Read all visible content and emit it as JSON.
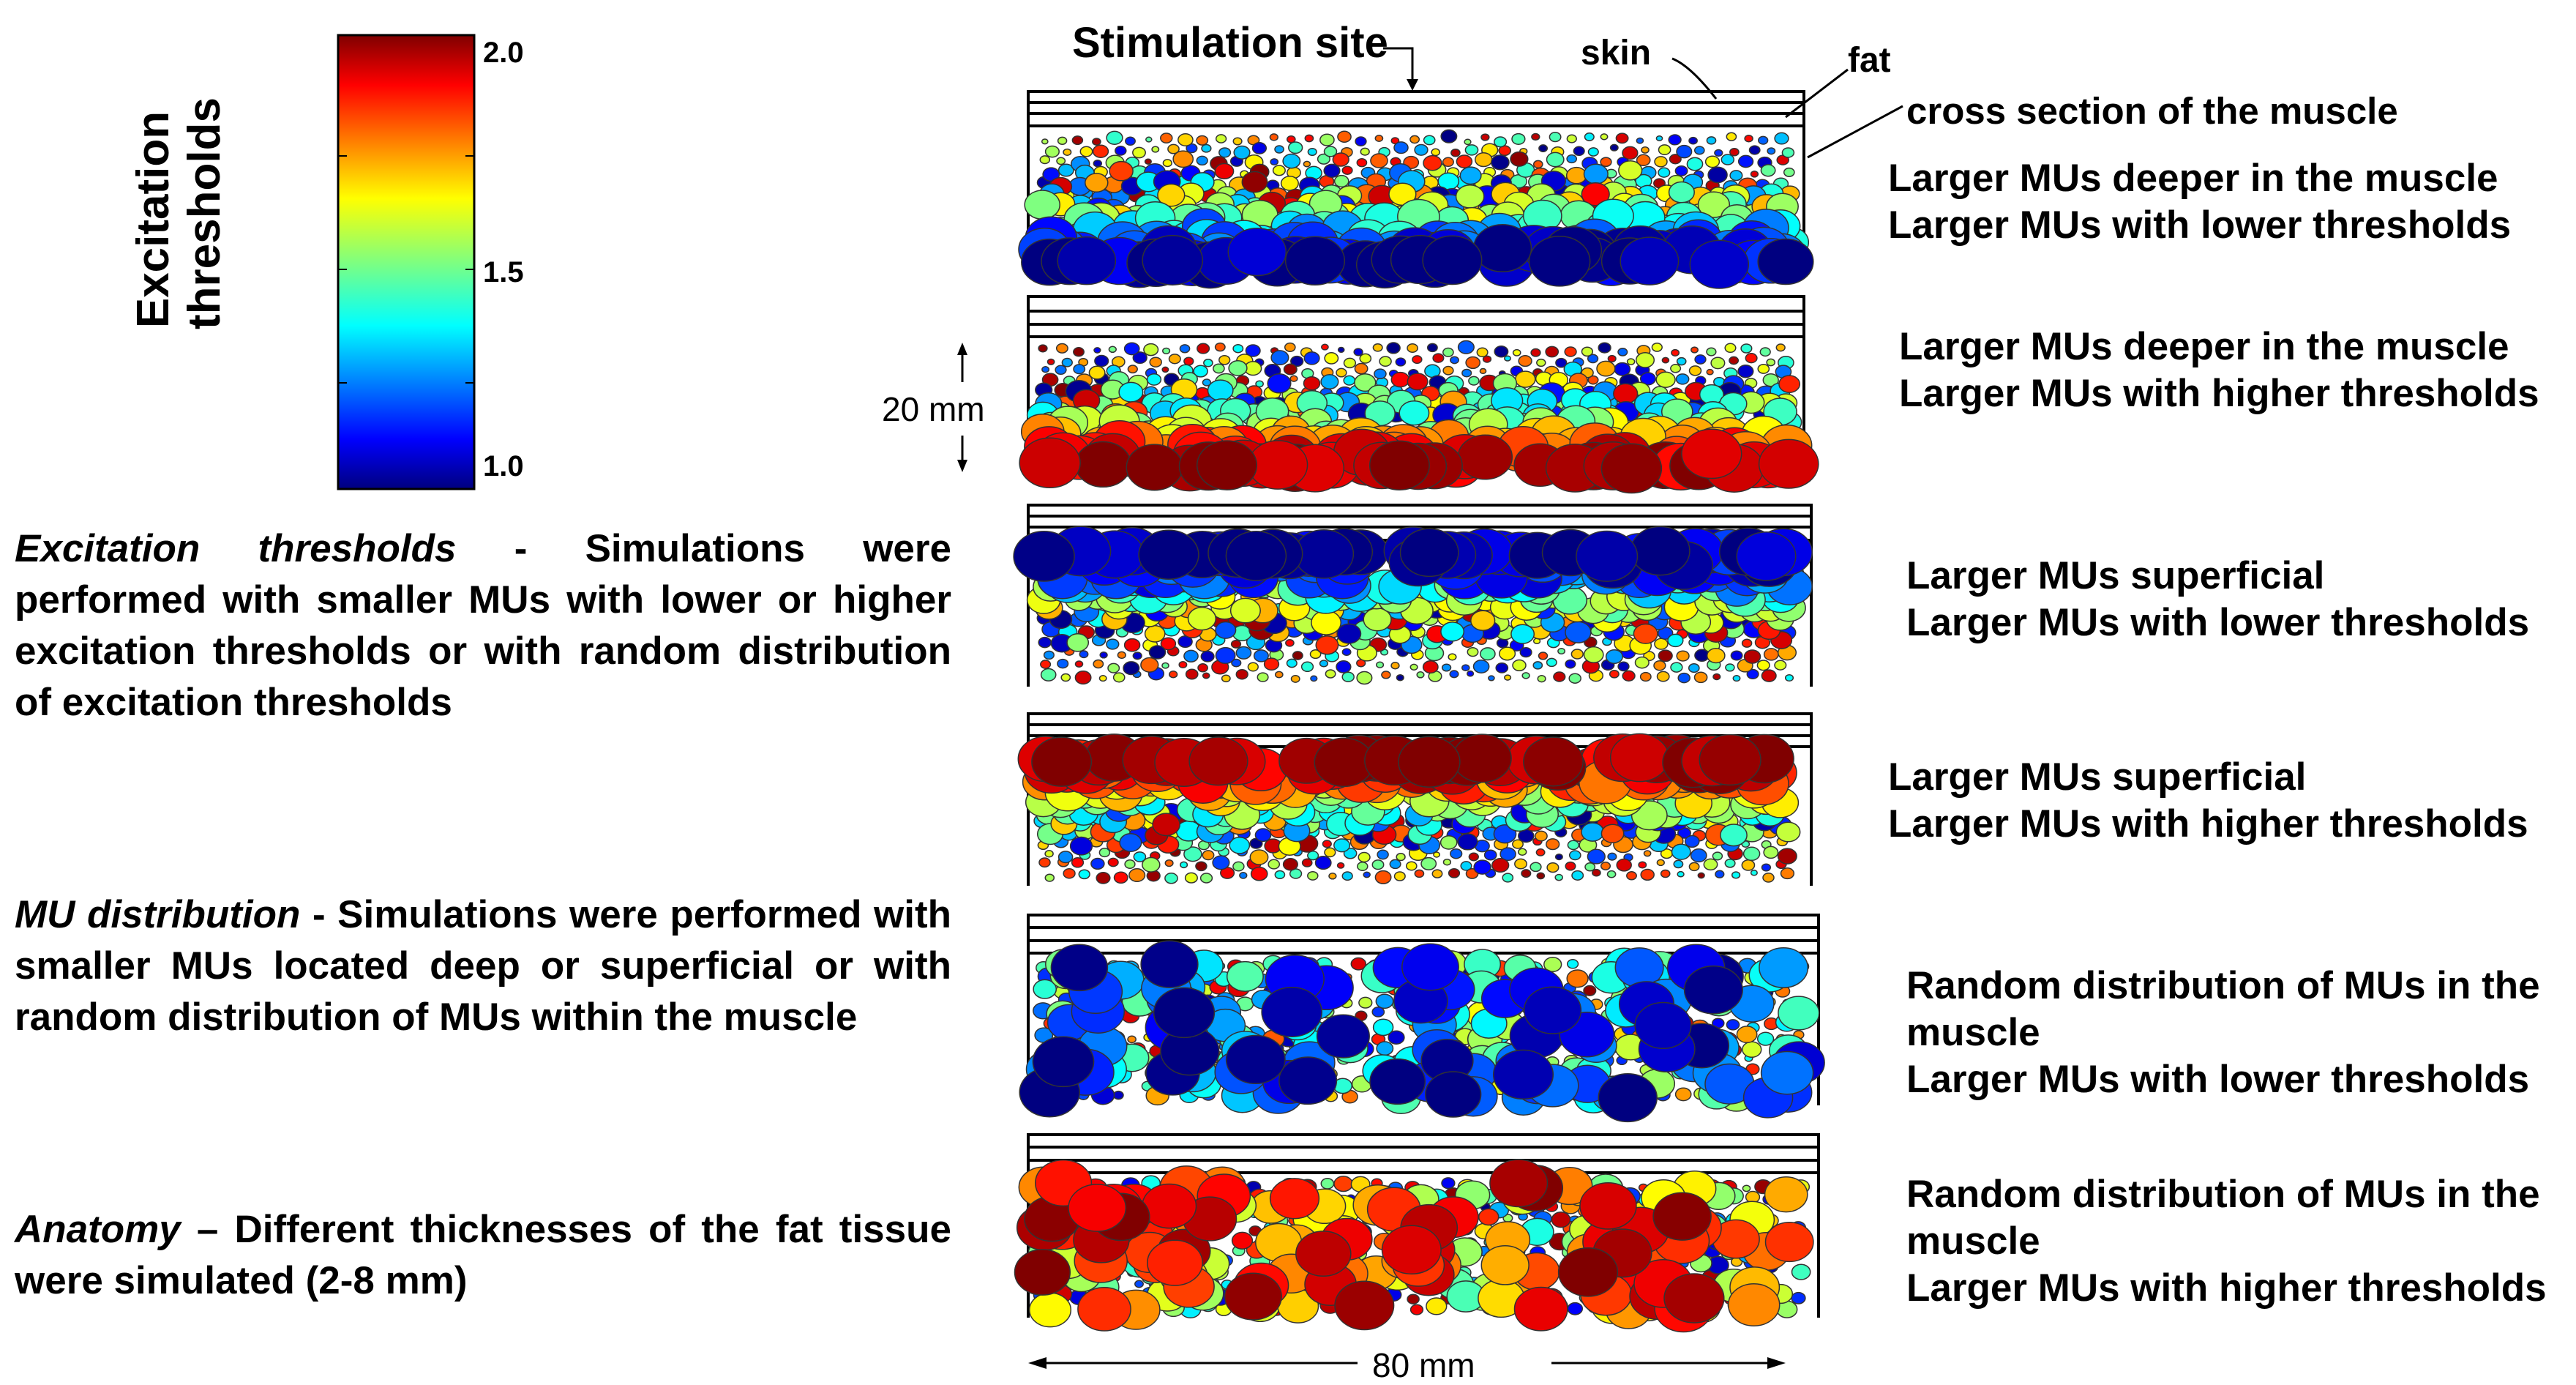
{
  "colorbar": {
    "label_line1": "Excitation",
    "label_line2": "thresholds",
    "tick_top": "2.0",
    "tick_mid": "1.5",
    "tick_bottom": "1.0",
    "min": 1.0,
    "max": 2.0,
    "colormap": "jet"
  },
  "descriptions": [
    {
      "term": "Excitation thresholds",
      "sep": " - ",
      "text": "Simulations were performed with smaller MUs with lower or higher excitation thresholds or with random distribution of excitation thresholds"
    },
    {
      "term": "MU distribution",
      "sep": " - ",
      "text": "Simulations were performed with smaller MUs located deep or superficial or with random distribution of MUs within the muscle"
    },
    {
      "term": "Anatomy",
      "sep": " – ",
      "text": "Different thicknesses of the fat tissue were simulated (2-8 mm)"
    }
  ],
  "annotations": {
    "stimulation_site": "Stimulation site",
    "skin": "skin",
    "fat": "fat",
    "cross_section": "cross section of the muscle",
    "depth_scale": "20 mm",
    "width_scale": "80 mm"
  },
  "panels": [
    {
      "line1": "Larger MUs deeper in the muscle",
      "line2": "Larger MUs with lower thresholds",
      "line3": "",
      "placement": "deep",
      "threshold_order": "lower"
    },
    {
      "line1": "Larger MUs deeper in the muscle",
      "line2": "Larger MUs with higher thresholds",
      "line3": "",
      "placement": "deep",
      "threshold_order": "higher"
    },
    {
      "line1": "Larger MUs superficial",
      "line2": "Larger MUs with lower thresholds",
      "line3": "",
      "placement": "superficial",
      "threshold_order": "lower"
    },
    {
      "line1": "Larger MUs superficial",
      "line2": "Larger MUs with higher thresholds",
      "line3": "",
      "placement": "superficial",
      "threshold_order": "higher"
    },
    {
      "line1": "Random distribution of MUs in the",
      "line2": "muscle",
      "line3": "Larger MUs with lower thresholds",
      "placement": "random",
      "threshold_order": "lower"
    },
    {
      "line1": "Random distribution of MUs in the",
      "line2": "muscle",
      "line3": "Larger MUs with higher thresholds",
      "placement": "random",
      "threshold_order": "higher"
    }
  ]
}
